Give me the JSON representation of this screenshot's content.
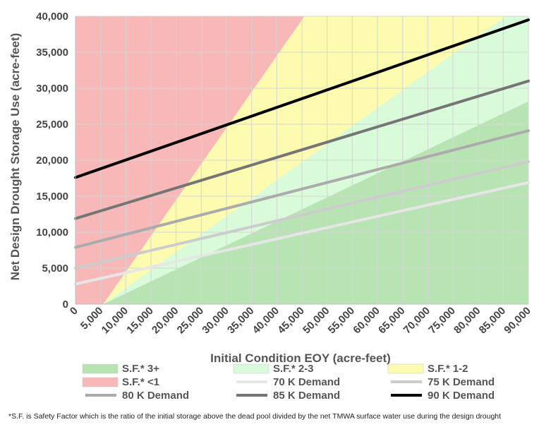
{
  "chart_data": {
    "type": "line",
    "title": "",
    "xlabel": "Initial Condition EOY (acre-feet)",
    "ylabel": "Net Design Drought Storage Use (acre-feet)",
    "xlim": [
      0,
      90000
    ],
    "ylim": [
      0,
      40000
    ],
    "x_ticks": [
      0,
      5000,
      10000,
      15000,
      20000,
      25000,
      30000,
      35000,
      40000,
      45000,
      50000,
      55000,
      60000,
      65000,
      70000,
      75000,
      80000,
      85000,
      90000
    ],
    "x_tick_labels": [
      "0",
      "5,000",
      "10,000",
      "15,000",
      "20,000",
      "25,000",
      "30,000",
      "35,000",
      "40,000",
      "45,000",
      "50,000",
      "55,000",
      "60,000",
      "65,000",
      "70,000",
      "75,000",
      "80,000",
      "85,000",
      "90,000"
    ],
    "y_ticks": [
      0,
      5000,
      10000,
      15000,
      20000,
      25000,
      30000,
      35000,
      40000
    ],
    "y_tick_labels": [
      "0",
      "5,000",
      "10,000",
      "15,000",
      "20,000",
      "25,000",
      "30,000",
      "35,000",
      "40,000"
    ],
    "grid": true,
    "x": [
      0,
      90000
    ],
    "dead_pool_x": 5500,
    "zones": [
      {
        "name": "S.F.* 3+",
        "color": "#b8e4b4",
        "safety_factor_min": 3,
        "safety_factor_max": null
      },
      {
        "name": "S.F.* 2-3",
        "color": "#d9fbd9",
        "safety_factor_min": 2,
        "safety_factor_max": 3
      },
      {
        "name": "S.F.* 1-2",
        "color": "#fdfbb0",
        "safety_factor_min": 1,
        "safety_factor_max": 2
      },
      {
        "name": "S.F.* <1",
        "color": "#f8b8b8",
        "safety_factor_min": 0,
        "safety_factor_max": 1
      }
    ],
    "series": [
      {
        "name": "70 K Demand",
        "color": "#e6e6e6",
        "width": 4,
        "values": [
          2800,
          16900
        ]
      },
      {
        "name": "75 K Demand",
        "color": "#cccccc",
        "width": 4,
        "values": [
          5000,
          19800
        ]
      },
      {
        "name": "80 K Demand",
        "color": "#ababab",
        "width": 4,
        "values": [
          7900,
          24100
        ]
      },
      {
        "name": "85 K Demand",
        "color": "#757575",
        "width": 4,
        "values": [
          11900,
          31000
        ]
      },
      {
        "name": "90 K Demand",
        "color": "#000000",
        "width": 4,
        "values": [
          17600,
          39500
        ]
      }
    ],
    "legend": {
      "placement": "bottom",
      "entries": [
        "S.F.* 3+",
        "S.F.* 2-3",
        "S.F.* 1-2",
        "S.F.* <1",
        "70 K Demand",
        "75 K Demand",
        "80 K Demand",
        "85 K Demand",
        "90 K Demand"
      ]
    },
    "footnote": "*S.F. is Safety Factor which is the ratio of the initial storage above the dead pool divided by the net TMWA surface water use during the design drought"
  }
}
